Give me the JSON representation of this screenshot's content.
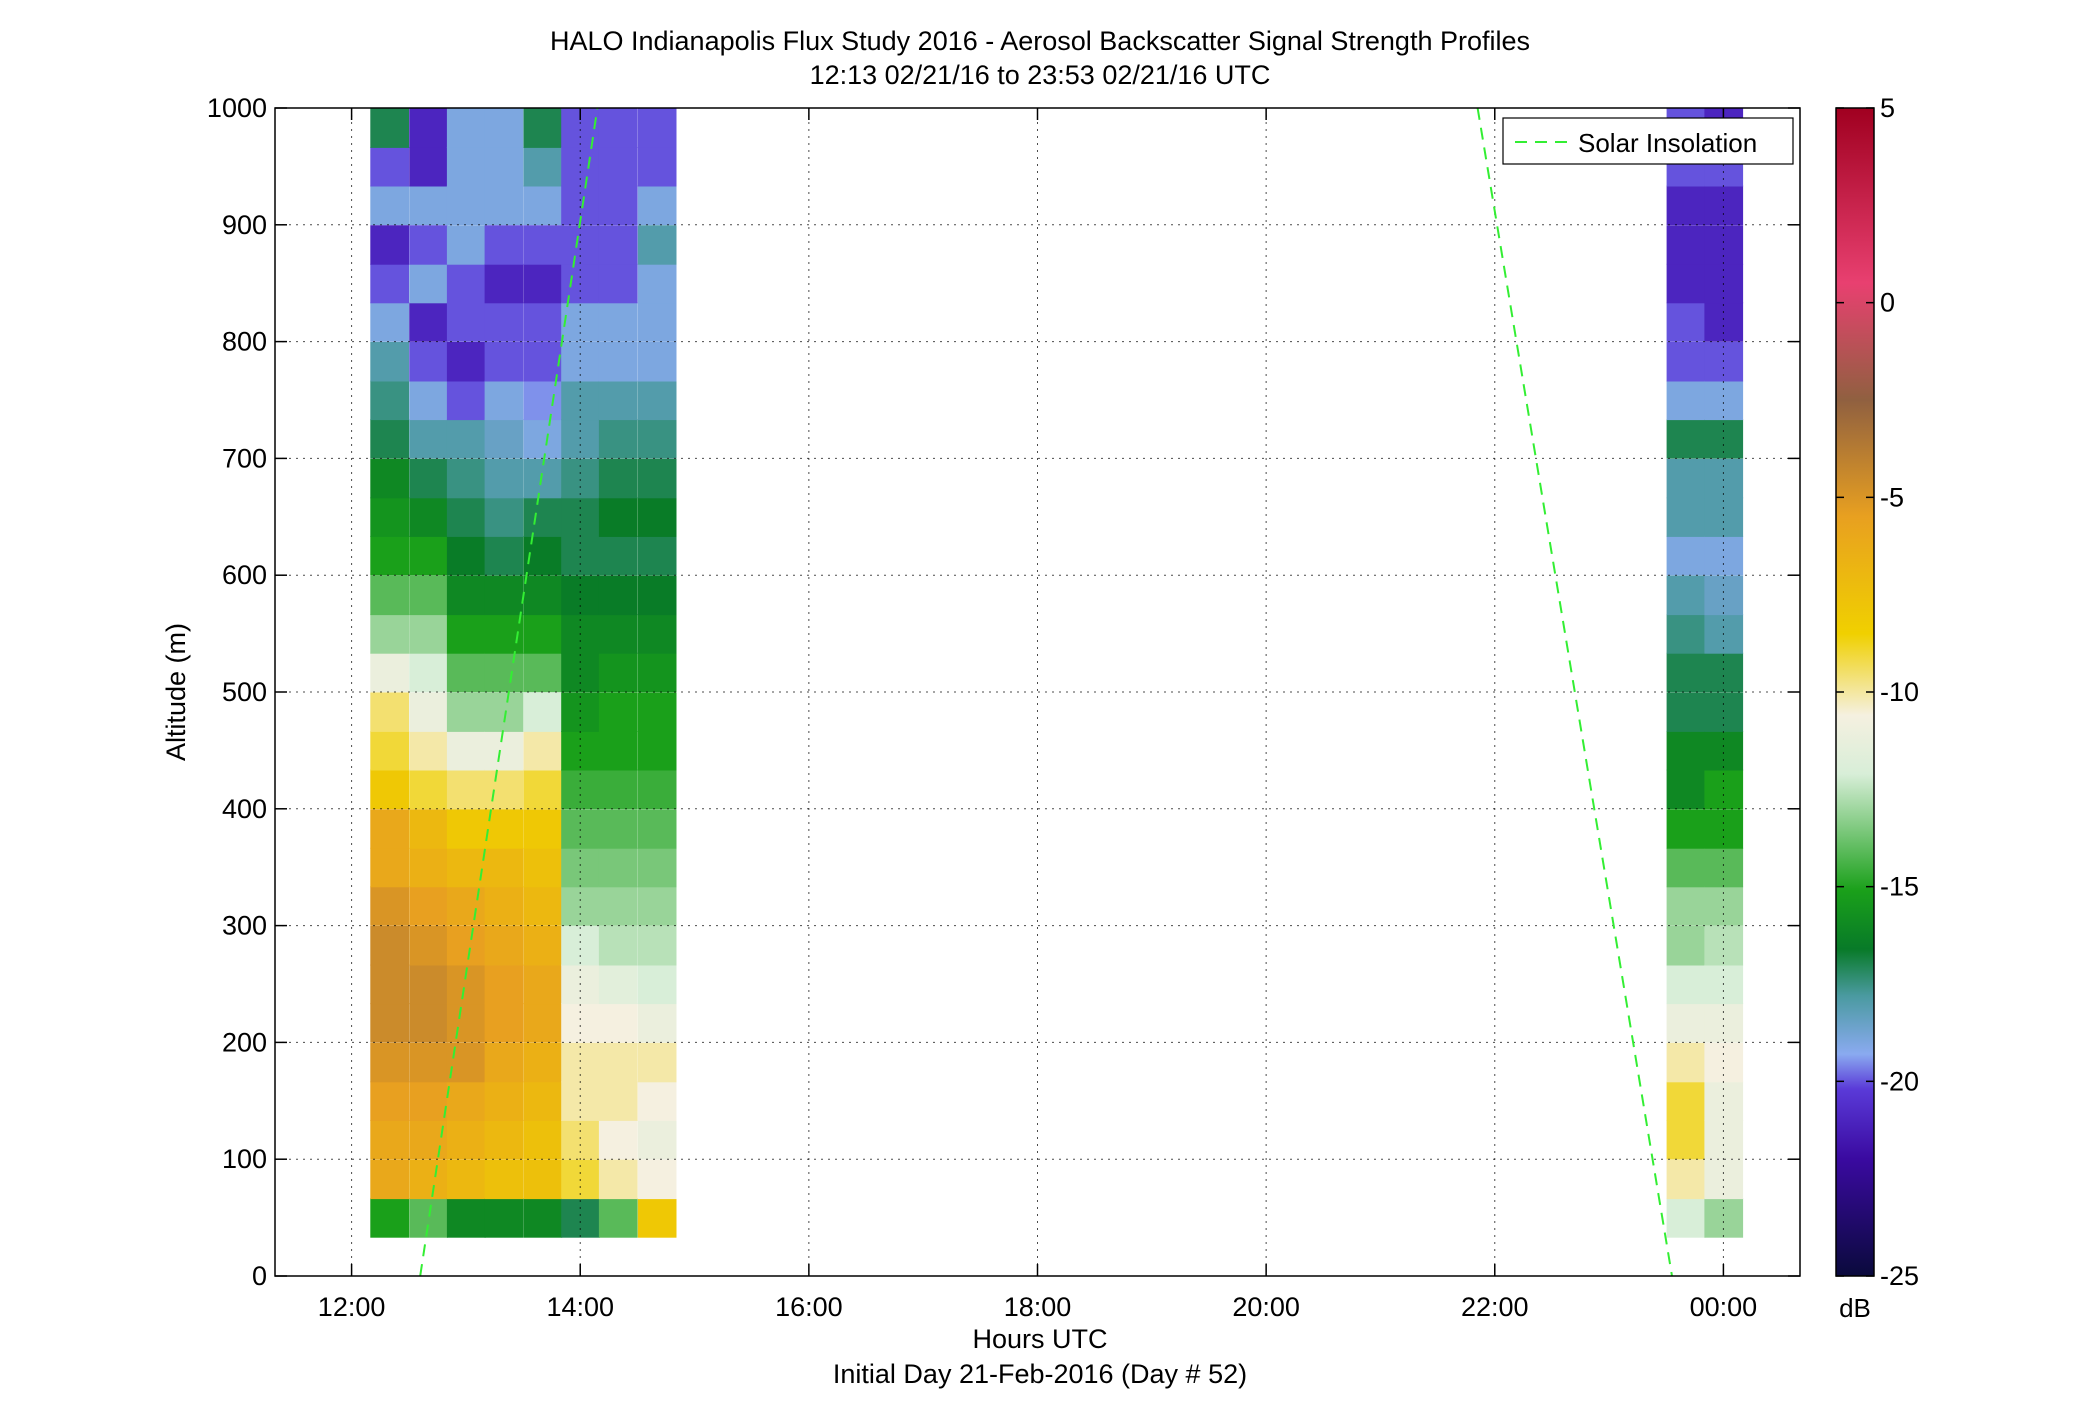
{
  "chart_data": {
    "type": "heatmap",
    "title": "HALO Indianapolis Flux Study 2016 - Aerosol Backscatter Signal Strength Profiles",
    "subtitle": "12:13 02/21/16 to 23:53 02/21/16  UTC",
    "xlabel": "Hours UTC",
    "xlabel2": "Initial Day 21-Feb-2016 (Day # 52)",
    "ylabel": "Altitude (m)",
    "xlim": [
      11.33,
      24.67
    ],
    "ylim": [
      0,
      1000
    ],
    "x_ticks": [
      {
        "value": 12,
        "label": "12:00"
      },
      {
        "value": 14,
        "label": "14:00"
      },
      {
        "value": 16,
        "label": "16:00"
      },
      {
        "value": 18,
        "label": "18:00"
      },
      {
        "value": 20,
        "label": "20:00"
      },
      {
        "value": 22,
        "label": "22:00"
      },
      {
        "value": 24,
        "label": "00:00"
      }
    ],
    "y_ticks": [
      {
        "value": 0,
        "label": "0"
      },
      {
        "value": 100,
        "label": "100"
      },
      {
        "value": 200,
        "label": "200"
      },
      {
        "value": 300,
        "label": "300"
      },
      {
        "value": 400,
        "label": "400"
      },
      {
        "value": 500,
        "label": "500"
      },
      {
        "value": 600,
        "label": "600"
      },
      {
        "value": 700,
        "label": "700"
      },
      {
        "value": 800,
        "label": "800"
      },
      {
        "value": 900,
        "label": "900"
      },
      {
        "value": 1000,
        "label": "1000"
      }
    ],
    "grid": true,
    "legend": {
      "position": "top-right",
      "entries": [
        "Solar Insolation"
      ]
    },
    "colorbar": {
      "label": "dB",
      "range": [
        -25,
        5
      ],
      "ticks": [
        {
          "value": 5,
          "label": "5"
        },
        {
          "value": 0,
          "label": "0"
        },
        {
          "value": -5,
          "label": "-5"
        },
        {
          "value": -10,
          "label": "-10"
        },
        {
          "value": -15,
          "label": "-15"
        },
        {
          "value": -20,
          "label": "-20"
        },
        {
          "value": -25,
          "label": "-25"
        }
      ]
    },
    "profiles": {
      "altitudes": [
        50,
        83,
        117,
        150,
        183,
        217,
        250,
        283,
        317,
        350,
        383,
        417,
        450,
        483,
        517,
        550,
        583,
        617,
        650,
        683,
        717,
        750,
        783,
        817,
        850,
        883,
        917,
        950,
        983
      ],
      "times": [
        {
          "t": 12.33,
          "values": [
            -15,
            -6,
            -6,
            -5.5,
            -5,
            -4.5,
            -4.5,
            -4.5,
            -5,
            -6,
            -6,
            -8,
            -9,
            -9.5,
            -11,
            -13,
            -14,
            -15,
            -15.5,
            -16,
            -17,
            -17.5,
            -18,
            -19,
            -20,
            -21,
            -19,
            -20,
            -17
          ]
        },
        {
          "t": 12.67,
          "values": [
            -14,
            -6.5,
            -6,
            -5.5,
            -5,
            -4.5,
            -4.5,
            -5,
            -5.5,
            -6.5,
            -7,
            -9,
            -10,
            -11,
            -12,
            -13,
            -14,
            -15,
            -16,
            -17,
            -18,
            -19,
            -20,
            -21,
            -19,
            -20,
            -19,
            -21,
            -21
          ]
        },
        {
          "t": 13.0,
          "values": [
            -16,
            -7,
            -6.5,
            -6,
            -5,
            -5,
            -5,
            -5.5,
            -6,
            -7,
            -8,
            -9.5,
            -11,
            -13,
            -14,
            -15,
            -16,
            -16.5,
            -17,
            -17.5,
            -18,
            -20,
            -21,
            -20,
            -20,
            -19,
            -19,
            -19,
            -19
          ]
        },
        {
          "t": 13.33,
          "values": [
            -16,
            -7.5,
            -7,
            -6.5,
            -6,
            -5.5,
            -5.5,
            -6,
            -6.5,
            -7,
            -8,
            -9.5,
            -11,
            -13,
            -14,
            -15,
            -16,
            -17,
            -17.5,
            -18,
            -18.5,
            -19,
            -20,
            -20,
            -21,
            -20,
            -19,
            -19,
            -19
          ]
        },
        {
          "t": 13.67,
          "values": [
            -16,
            -7.5,
            -7.5,
            -7,
            -6.5,
            -6,
            -6,
            -6.5,
            -7,
            -7.5,
            -8,
            -9,
            -10,
            -12,
            -14,
            -15,
            -16,
            -16.5,
            -17,
            -18,
            -19,
            -19.5,
            -20,
            -20,
            -21,
            -20,
            -19,
            -18,
            -17
          ]
        },
        {
          "t": 14.0,
          "values": [
            -17,
            -9,
            -9.5,
            -10,
            -10,
            -10.5,
            -11,
            -12,
            -13,
            -13.5,
            -14,
            -14.5,
            -15,
            -15.5,
            -16,
            -16,
            -16.5,
            -17,
            -17,
            -17.5,
            -18,
            -18,
            -19,
            -19,
            -20,
            -20,
            -20,
            -20,
            -20
          ]
        },
        {
          "t": 14.33,
          "values": [
            -14,
            -10,
            -10.5,
            -10,
            -10,
            -10.5,
            -11.5,
            -12.5,
            -13,
            -13.5,
            -14,
            -14.5,
            -15,
            -15,
            -15.5,
            -16,
            -16.5,
            -17,
            -16.5,
            -17,
            -17.5,
            -18,
            -19,
            -19,
            -20,
            -20,
            -20,
            -20,
            -20
          ]
        },
        {
          "t": 14.67,
          "values": [
            -8,
            -10.5,
            -11,
            -10.5,
            -10,
            -11,
            -12,
            -12.5,
            -13,
            -13.5,
            -14,
            -14.5,
            -15,
            -15,
            -15.5,
            -16,
            -16.5,
            -17,
            -16.5,
            -17,
            -17.5,
            -18,
            -19,
            -19,
            -19,
            -18,
            -19,
            -20,
            -20
          ]
        },
        {
          "t": 23.67,
          "values": [
            -12,
            -10,
            -9,
            -9,
            -10,
            -11,
            -12,
            -13,
            -13,
            -14,
            -15,
            -16,
            -16,
            -17,
            -17,
            -17.5,
            -18,
            -19,
            -18,
            -18,
            -17,
            -19,
            -20,
            -20,
            -21,
            -21,
            -21,
            -20,
            -20
          ]
        },
        {
          "t": 24.0,
          "values": [
            -13,
            -11,
            -11,
            -11,
            -10.5,
            -11,
            -12,
            -12.5,
            -13,
            -14,
            -15,
            -15,
            -16,
            -17,
            -17,
            -18,
            -18.5,
            -19,
            -18,
            -18,
            -17,
            -19,
            -20,
            -21,
            -21,
            -21,
            -21,
            -20,
            -21
          ]
        }
      ],
      "time_step": 0.333,
      "altitude_step": 33.3
    },
    "series": [
      {
        "name": "Solar Insolation",
        "style": "dashed",
        "color": "#33ee33",
        "segments": [
          {
            "x": [
              12.6,
              14.15
            ],
            "y": [
              0,
              1000
            ]
          },
          {
            "x": [
              21.85,
              23.55
            ],
            "y": [
              1000,
              0
            ]
          }
        ]
      }
    ]
  }
}
